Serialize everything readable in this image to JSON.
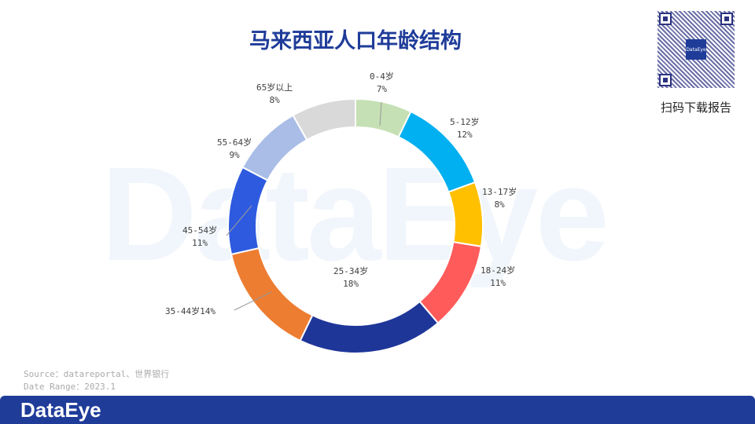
{
  "title": "马来西亚人口年龄结构",
  "watermark": "DataEye",
  "qr": {
    "center_text": "DataEye",
    "caption": "扫码下载报告"
  },
  "source": "Source：datareportal、世界银行",
  "date_range": "Date Range：2023.1",
  "footer_logo": "DataEye",
  "chart_data": {
    "type": "pie",
    "donut": true,
    "title": "马来西亚人口年龄结构",
    "categories": [
      "0-4岁",
      "5-12岁",
      "13-17岁",
      "18-24岁",
      "25-34岁",
      "35-44岁",
      "45-54岁",
      "55-64岁",
      "65岁以上"
    ],
    "values": [
      7,
      12,
      8,
      11,
      18,
      14,
      11,
      9,
      8
    ],
    "labels": [
      "7%",
      "12%",
      "8%",
      "11%",
      "18%",
      "14%",
      "11%",
      "9%",
      "8%"
    ],
    "colors": [
      "#c5e0b4",
      "#00b0f0",
      "#ffc000",
      "#ff5b5b",
      "#1f3699",
      "#ed7d31",
      "#2e5ae0",
      "#a9bde6",
      "#d9d9d9"
    ]
  }
}
